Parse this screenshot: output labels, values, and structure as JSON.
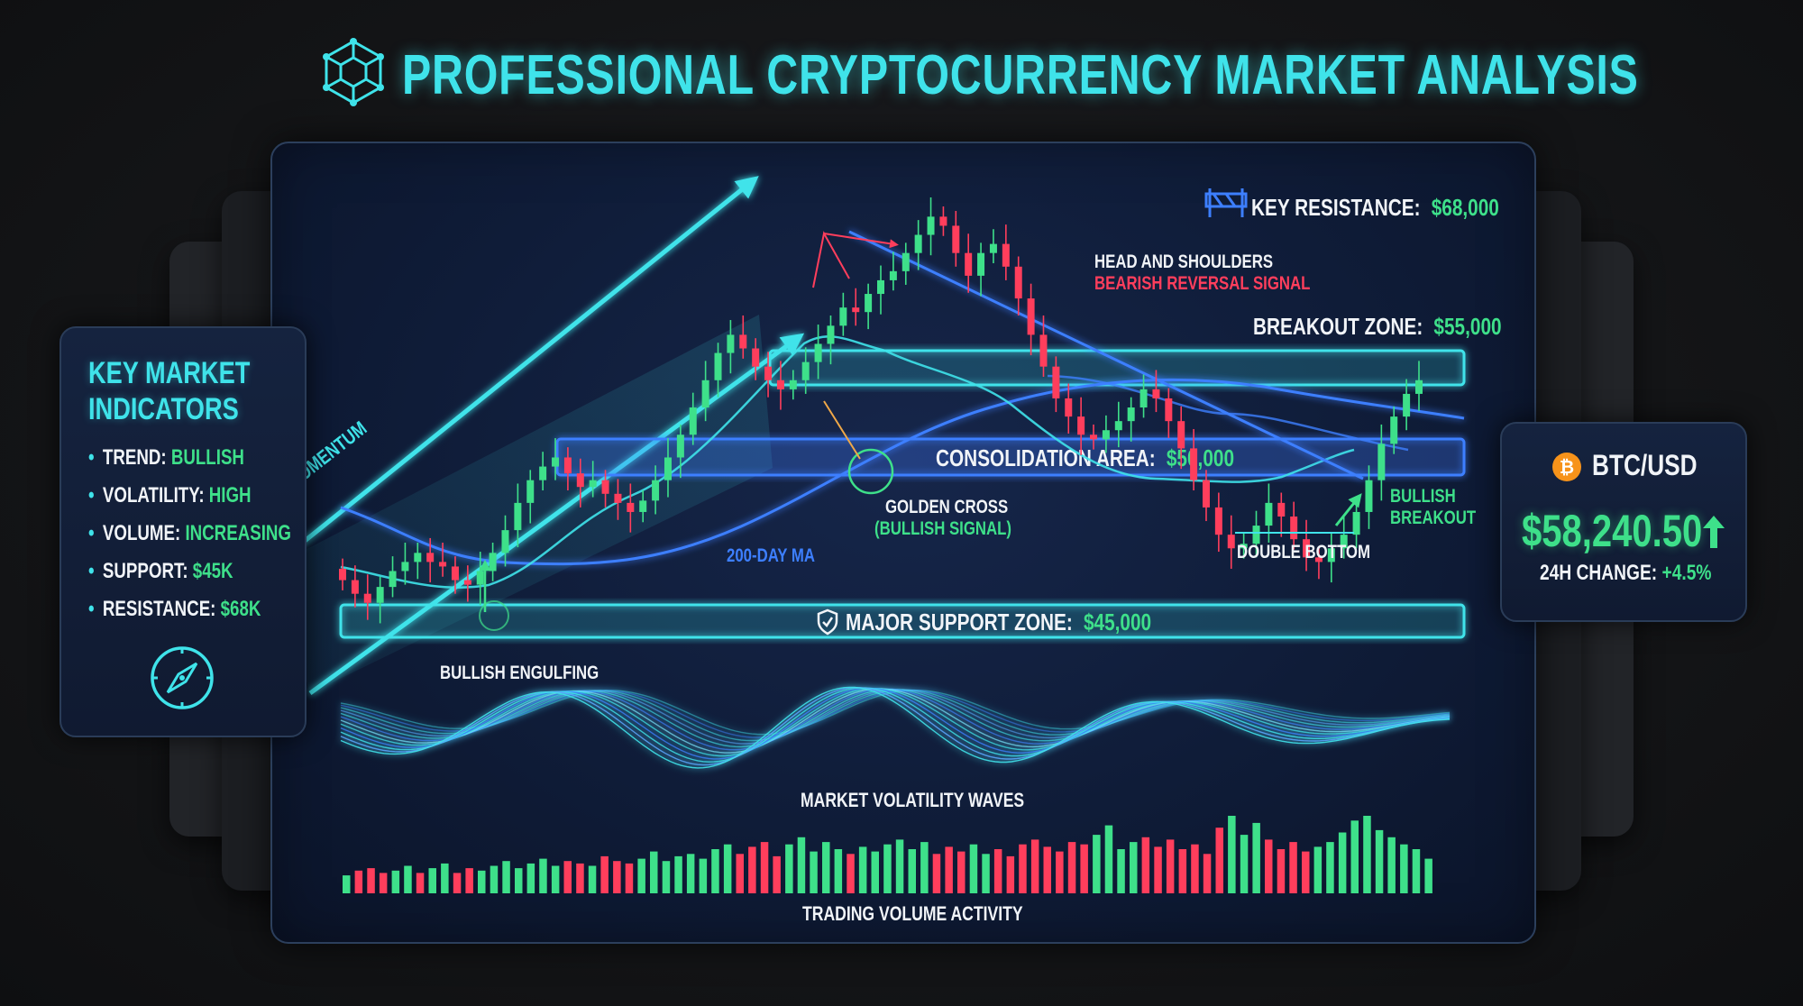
{
  "title": "PROFESSIONAL CRYPTOCURRENCY MARKET ANALYSIS",
  "colors": {
    "accent": "#3fe3ea",
    "bullish": "#3ee08a",
    "bearish": "#ff3e5c",
    "blue": "#3d7fff",
    "background": "#141517",
    "panel": "#0f1c38"
  },
  "icons": {
    "title": "network-cube-icon",
    "compass": "compass-icon",
    "bitcoin": "bitcoin-icon",
    "barrier": "barrier-icon",
    "shield": "shield-icon"
  },
  "indicators": {
    "title_line1": "KEY MARKET",
    "title_line2": "INDICATORS",
    "items": [
      {
        "label": "TREND:",
        "value": "BULLISH"
      },
      {
        "label": "VOLATILITY:",
        "value": "HIGH"
      },
      {
        "label": "VOLUME:",
        "value": "INCREASING"
      },
      {
        "label": "SUPPORT:",
        "value": "$45K"
      },
      {
        "label": "RESISTANCE:",
        "value": "$68K"
      }
    ]
  },
  "ticker": {
    "pair": "BTC/USD",
    "price": "$58,240.50",
    "change_label": "24H CHANGE:",
    "change_value": "+4.5%"
  },
  "chart_data": {
    "type": "candlestick",
    "levels": [
      {
        "label": "KEY RESISTANCE:",
        "value": "$68,000",
        "price": 68000
      },
      {
        "label": "BREAKOUT ZONE:",
        "value": "$55,000",
        "price": 55000
      },
      {
        "label": "CONSOLIDATION AREA:",
        "value": "$50,000",
        "price": 50000
      },
      {
        "label": "MAJOR SUPPORT ZONE:",
        "value": "$45,000",
        "price": 45000
      }
    ],
    "annotations": {
      "bullish_momentum": "BULLISH MOMENTUM",
      "head_shoulders_1": "HEAD AND SHOULDERS",
      "head_shoulders_2": "BEARISH REVERSAL SIGNAL",
      "golden_cross_1": "GOLDEN CROSS",
      "golden_cross_2": "(BULLISH SIGNAL)",
      "ma200": "200-DAY MA",
      "double_bottom": "DOUBLE BOTTOM",
      "bullish_breakout_1": "BULLISH",
      "bullish_breakout_2": "BREAKOUT",
      "bullish_engulfing": "BULLISH ENGULFING",
      "volatility_waves": "MARKET VOLATILITY WAVES",
      "volume_activity": "TRADING VOLUME ACTIVITY"
    },
    "closes": [
      46.2,
      45.6,
      45.2,
      45.9,
      46.6,
      47.0,
      47.4,
      47.0,
      46.8,
      46.2,
      46.0,
      46.6,
      47.4,
      48.4,
      49.6,
      50.6,
      51.2,
      51.6,
      50.9,
      50.3,
      50.6,
      50.0,
      49.6,
      49.2,
      49.7,
      50.6,
      51.6,
      52.6,
      53.8,
      55.0,
      56.2,
      57.0,
      56.4,
      55.6,
      55.0,
      54.6,
      55.0,
      55.8,
      56.6,
      57.4,
      58.2,
      58.0,
      58.8,
      59.4,
      59.8,
      60.6,
      61.4,
      62.2,
      61.8,
      60.6,
      59.6,
      60.6,
      61.0,
      60.0,
      58.6,
      57.0,
      55.6,
      54.2,
      53.4,
      52.6,
      52.4,
      52.8,
      53.2,
      53.8,
      54.6,
      54.2,
      53.2,
      52.0,
      50.6,
      49.4,
      48.2,
      47.6,
      47.8,
      48.6,
      49.6,
      49.0,
      48.0,
      47.2,
      47.0,
      47.6,
      48.2,
      49.2,
      50.6,
      52.2,
      53.4,
      54.4,
      55.0
    ],
    "volume": [
      3,
      5,
      6,
      4,
      5,
      7,
      4,
      6,
      8,
      4,
      6,
      5,
      7,
      9,
      6,
      8,
      10,
      7,
      9,
      8,
      7,
      11,
      9,
      8,
      10,
      13,
      9,
      11,
      12,
      10,
      14,
      16,
      12,
      15,
      17,
      11,
      16,
      19,
      13,
      17,
      14,
      12,
      15,
      13,
      16,
      18,
      14,
      17,
      12,
      15,
      13,
      16,
      12,
      14,
      11,
      16,
      18,
      15,
      13,
      17,
      16,
      20,
      24,
      14,
      17,
      19,
      15,
      18,
      14,
      16,
      12,
      23,
      28,
      20,
      25,
      18,
      14,
      17,
      13,
      15,
      17,
      21,
      26,
      28,
      22,
      19,
      16,
      14,
      10
    ],
    "volume_dir": [
      "b",
      "r",
      "r",
      "r",
      "b",
      "b",
      "r",
      "b",
      "b",
      "r",
      "r",
      "b",
      "b",
      "b",
      "b",
      "b",
      "b",
      "b",
      "r",
      "r",
      "b",
      "r",
      "r",
      "r",
      "b",
      "b",
      "b",
      "b",
      "b",
      "b",
      "b",
      "b",
      "r",
      "r",
      "r",
      "r",
      "b",
      "b",
      "b",
      "b",
      "b",
      "r",
      "b",
      "b",
      "b",
      "b",
      "b",
      "b",
      "r",
      "r",
      "r",
      "b",
      "b",
      "r",
      "r",
      "r",
      "r",
      "r",
      "r",
      "r",
      "r",
      "b",
      "b",
      "b",
      "b",
      "r",
      "r",
      "r",
      "r",
      "r",
      "r",
      "r",
      "b",
      "b",
      "b",
      "r",
      "r",
      "r",
      "r",
      "b",
      "b",
      "b",
      "b",
      "b",
      "b",
      "b",
      "b",
      "b",
      "b"
    ]
  }
}
